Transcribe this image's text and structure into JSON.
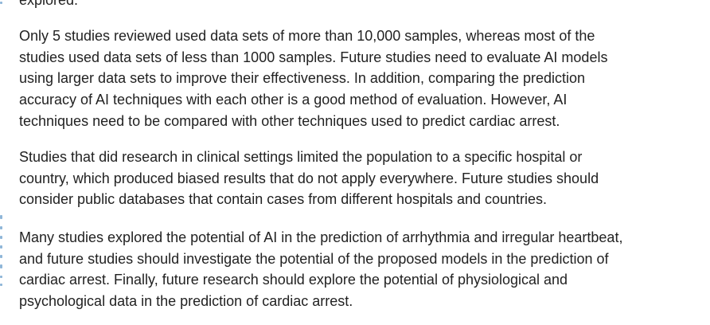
{
  "article": {
    "clipped_line": "explored.",
    "paragraphs": [
      {
        "lines": [
          "Only 5 studies reviewed used data sets of more than 10,000 samples, whereas most of the",
          "studies used data sets of less than 1000 samples. Future studies need to evaluate AI models",
          "using larger data sets to improve their effectiveness. In addition, comparing the prediction",
          "accuracy of AI techniques with each other is a good method of evaluation. However, AI",
          "techniques need to be compared with other techniques used to predict cardiac arrest."
        ]
      },
      {
        "lines": [
          "Studies that did research in clinical settings limited the population to a specific hospital or",
          "country, which produced biased results that do not apply everywhere. Future studies should",
          "consider public databases that contain cases from different hospitals and countries."
        ]
      },
      {
        "lines": [
          "Many studies explored the potential of AI in the prediction of arrhythmia and irregular heartbeat,",
          "and future studies should investigate the potential of the proposed models in the prediction of",
          "cardiac arrest. Finally, future research should explore the potential of physiological and",
          "psychological data in the prediction of cardiac arrest."
        ]
      }
    ]
  },
  "colors": {
    "text": "#222222",
    "background": "#ffffff",
    "edge_accent": "#8fb6d8"
  }
}
